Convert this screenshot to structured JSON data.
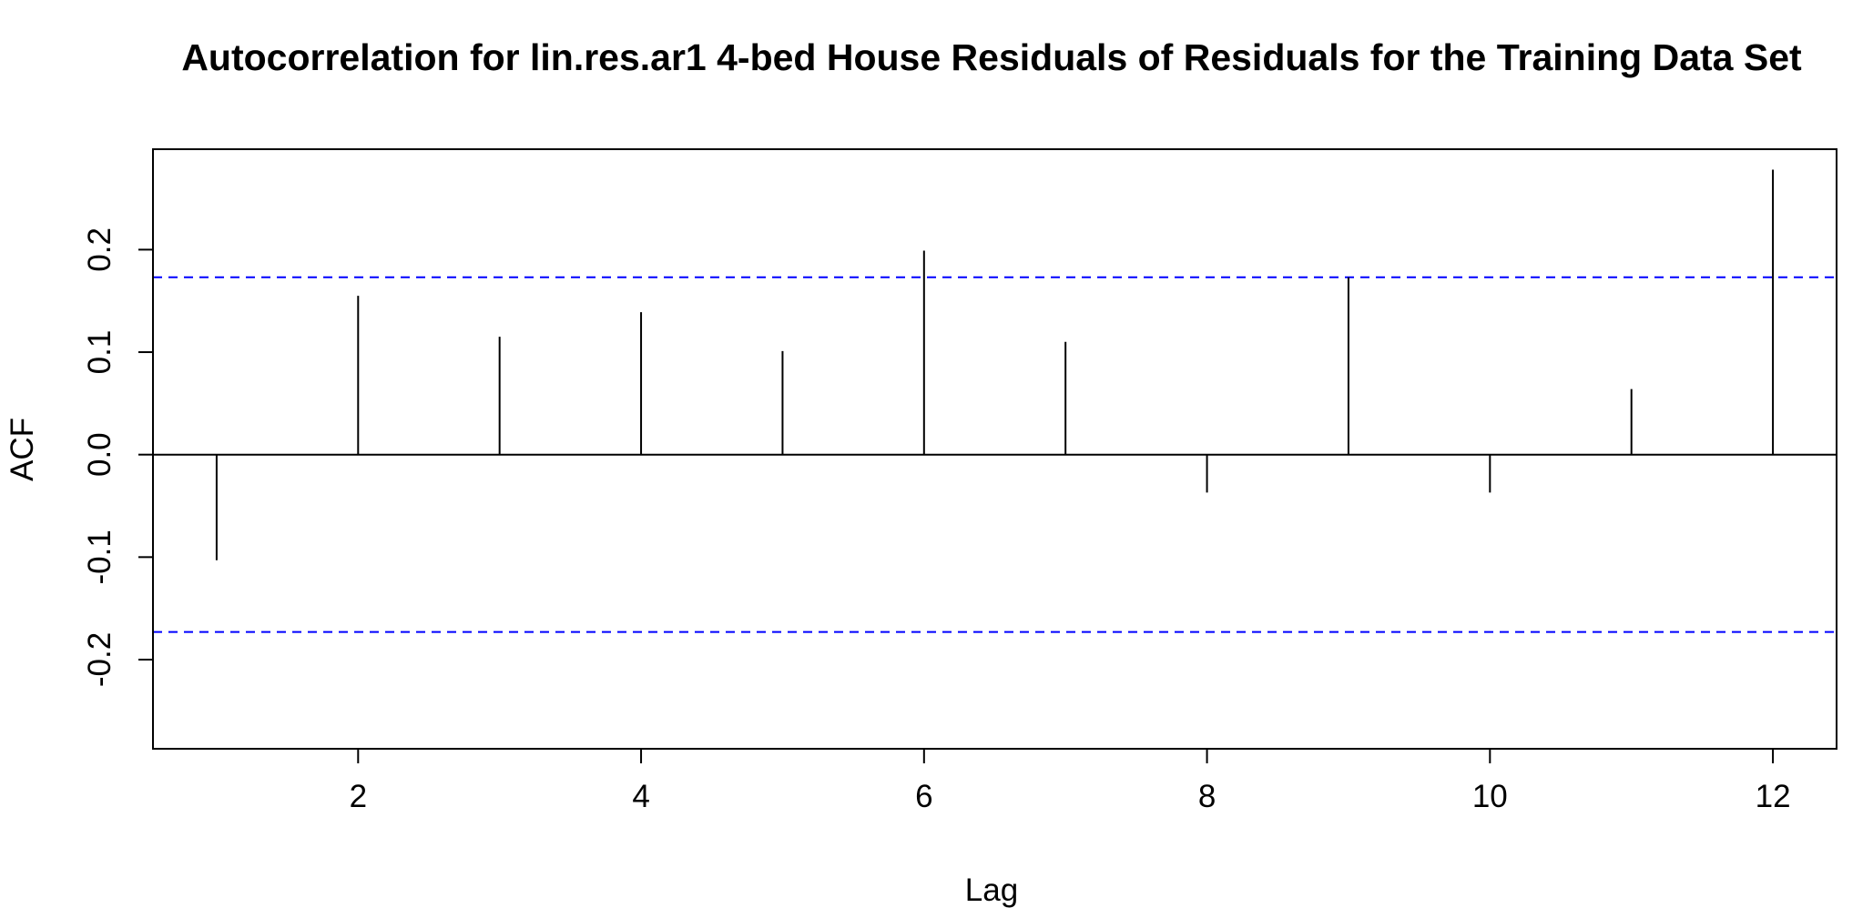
{
  "chart_data": {
    "type": "bar",
    "title": "Autocorrelation for lin.res.ar1 4-bed House Residuals of Residuals for the Training Data Set",
    "xlabel": "Lag",
    "ylabel": "ACF",
    "x": [
      1,
      2,
      3,
      4,
      5,
      6,
      7,
      8,
      9,
      10,
      11,
      12
    ],
    "values": [
      -0.103,
      0.155,
      0.115,
      0.139,
      0.101,
      0.199,
      0.11,
      -0.037,
      0.173,
      -0.037,
      0.064,
      0.278
    ],
    "xlim": [
      0.55,
      12.45
    ],
    "ylim": [
      -0.287,
      0.298
    ],
    "x_ticks": [
      2,
      4,
      6,
      8,
      10,
      12
    ],
    "x_tick_labels": [
      "2",
      "4",
      "6",
      "8",
      "10",
      "12"
    ],
    "y_ticks": [
      -0.2,
      -0.1,
      0.0,
      0.1,
      0.2
    ],
    "y_tick_labels": [
      "-0.2",
      "-0.1",
      "0.0",
      "0.1",
      "0.2"
    ],
    "confidence_bound": 0.173,
    "zero_line": true,
    "grid": false,
    "colors": {
      "bars": "#000000",
      "zero_line": "#000000",
      "confidence": "#0000ff",
      "frame": "#000000"
    }
  }
}
